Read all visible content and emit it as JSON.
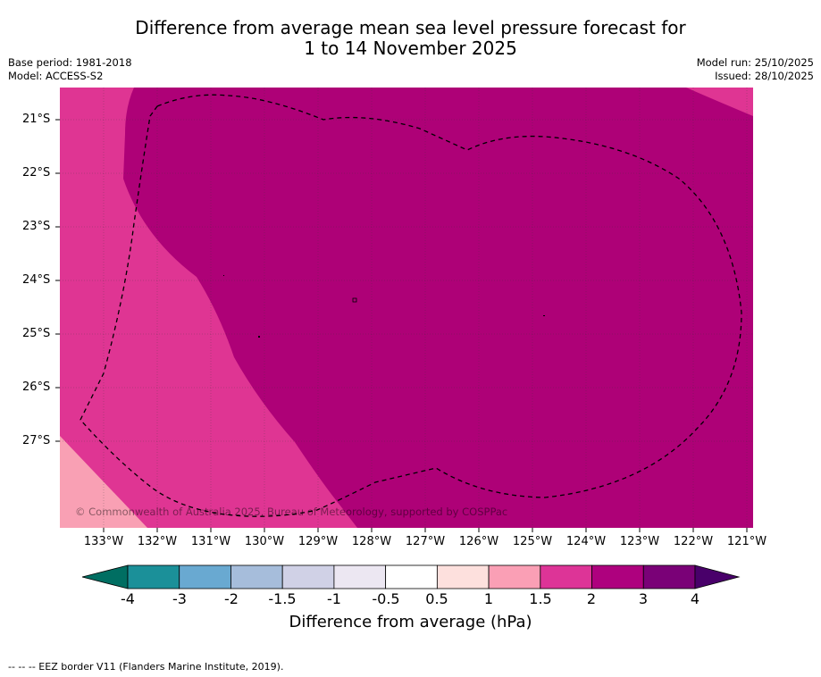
{
  "title": {
    "line1": "Difference from average mean sea level pressure forecast for",
    "line2": "1 to 14 November 2025"
  },
  "meta": {
    "base_period": "Base period: 1981-2018",
    "model": "Model: ACCESS-S2",
    "model_run": "Model run: 25/10/2025",
    "issued": "Issued: 28/10/2025"
  },
  "map": {
    "lat_labels": [
      "21°S",
      "22°S",
      "23°S",
      "24°S",
      "25°S",
      "26°S",
      "27°S"
    ],
    "lon_labels": [
      "133°W",
      "132°W",
      "131°W",
      "130°W",
      "129°W",
      "128°W",
      "127°W",
      "126°W",
      "125°W",
      "124°W",
      "123°W",
      "122°W",
      "121°W"
    ],
    "copyright": "© Commonwealth of Australia 2025, Bureau of Meteorology, supported by COSPPac",
    "colors": {
      "band_1_1_5": "#f9a0b4",
      "band_1_5_2": "#df3593",
      "band_2_3": "#ae0177"
    }
  },
  "colorbar": {
    "ticks": [
      "-4",
      "-3",
      "-2",
      "-1.5",
      "-1",
      "-0.5",
      "0.5",
      "1",
      "1.5",
      "2",
      "3",
      "4"
    ],
    "colors": [
      "#006e62",
      "#1b9099",
      "#69a9d1",
      "#a6bddb",
      "#d0d1e6",
      "#ece7f2",
      "#ffffff",
      "#fde0dd",
      "#fa9fb5",
      "#dd3497",
      "#ae017e",
      "#7a0177",
      "#49006a"
    ],
    "label": "Difference from average (hPa)"
  },
  "footnote": "--  --  -- EEZ border V11 (Flanders Marine Institute, 2019)."
}
